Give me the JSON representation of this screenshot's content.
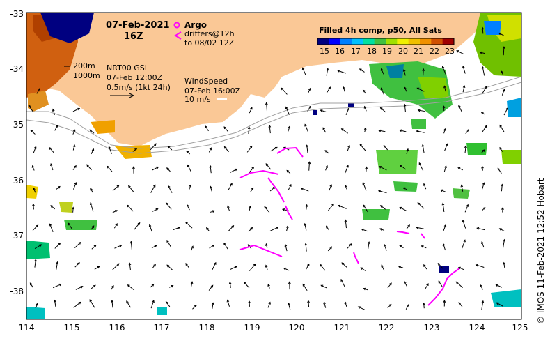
{
  "map": {
    "title_date": "07-Feb-2021",
    "title_time": "16Z",
    "x_ticks": [
      "114",
      "115",
      "116",
      "117",
      "118",
      "119",
      "120",
      "121",
      "122",
      "123",
      "124",
      "125"
    ],
    "y_ticks": [
      "-33",
      "-34",
      "-35",
      "-36",
      "-37",
      "-38"
    ],
    "lon_range": [
      114,
      125
    ],
    "lat_range": [
      -38.6,
      -33
    ],
    "isobath_200": "200m",
    "isobath_1000": "1000m",
    "current_source": "NRT00 GSL",
    "current_time": "07-Feb 12:00Z",
    "current_scale": "0.5m/s (1kt 24h)",
    "wind_label": "WindSpeed",
    "wind_time": "07-Feb 16:00Z",
    "wind_scale": "10 m/s",
    "argo_label": "Argo",
    "drifters_label": "drifters@12h",
    "drifters_until": "to 08/02 12Z",
    "credit": "© IMOS 11-Feb-2021 12:52 Hobart",
    "colors": {
      "land": "#fac896",
      "magenta": "#ff00ff",
      "arrow": "#000000"
    }
  },
  "colorbar": {
    "title": "Filled 4h comp, p50, All Sats",
    "ticks": [
      "15",
      "16",
      "17",
      "18",
      "19",
      "20",
      "21",
      "22",
      "23"
    ],
    "colors": [
      "#000080",
      "#0000ff",
      "#0080ff",
      "#00c0ff",
      "#00e0a0",
      "#40c040",
      "#a0e000",
      "#f0f000",
      "#f0c000",
      "#f09000",
      "#d05000",
      "#a00000"
    ]
  }
}
